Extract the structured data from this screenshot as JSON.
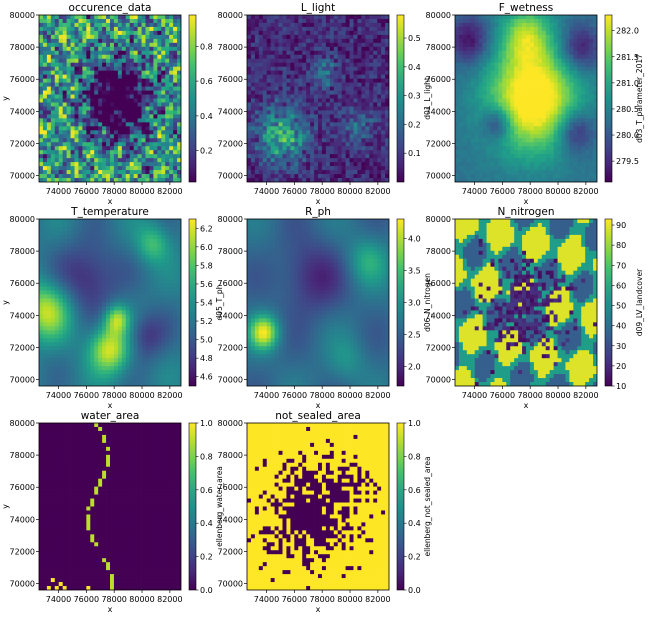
{
  "chart_data": [
    {
      "type": "heatmap",
      "title": "occurence_data",
      "xlabel": "x",
      "ylabel": "y",
      "cbar_label": "",
      "xticks": [
        "74000",
        "76000",
        "78000",
        "80000",
        "82000"
      ],
      "yticks": [
        "70000",
        "72000",
        "74000",
        "76000",
        "78000",
        "80000"
      ],
      "xlim": [
        72600,
        82800
      ],
      "ylim": [
        69600,
        80000
      ],
      "cbar_ticks": [
        "0.2",
        "0.4",
        "0.6",
        "0.8"
      ],
      "clim": [
        0.02,
        0.98
      ],
      "colormap": "viridis",
      "pattern": "fine-mottled urban mosaic, dark purple city centre with green/teal surroundings"
    },
    {
      "type": "heatmap",
      "title": "L_light",
      "xlabel": "x",
      "ylabel": "",
      "cbar_label": "d01_L_light",
      "xticks": [
        "74000",
        "76000",
        "78000",
        "80000",
        "82000"
      ],
      "yticks": [
        "70000",
        "72000",
        "74000",
        "76000",
        "78000",
        "80000"
      ],
      "xlim": [
        72600,
        82800
      ],
      "ylim": [
        69600,
        80000
      ],
      "cbar_ticks": [
        "0.1",
        "0.2",
        "0.3",
        "0.4",
        "0.5"
      ],
      "clim": [
        0.0,
        0.58
      ],
      "colormap": "viridis",
      "pattern": "mostly dark blue-purple with scattered green patches in the south-west"
    },
    {
      "type": "heatmap",
      "title": "F_wetness",
      "xlabel": "x",
      "ylabel": "",
      "cbar_label": "d03_T_parameter_2017",
      "xticks": [
        "74000",
        "76000",
        "78000",
        "80000",
        "82000"
      ],
      "yticks": [
        "70000",
        "72000",
        "74000",
        "76000",
        "78000",
        "80000"
      ],
      "xlim": [
        72600,
        82800
      ],
      "ylim": [
        69600,
        80000
      ],
      "cbar_ticks": [
        "279.5",
        "280.0",
        "280.5",
        "281.0",
        "281.5",
        "282.0"
      ],
      "clim": [
        279.1,
        282.3
      ],
      "colormap": "viridis",
      "pattern": "smooth gradient, bright yellow centre, purple outer patches"
    },
    {
      "type": "heatmap",
      "title": "T_temperature",
      "xlabel": "x",
      "ylabel": "y",
      "cbar_label": "d05_T_ph",
      "xticks": [
        "74000",
        "76000",
        "78000",
        "80000",
        "82000"
      ],
      "yticks": [
        "70000",
        "72000",
        "74000",
        "76000",
        "78000",
        "80000"
      ],
      "xlim": [
        72600,
        82800
      ],
      "ylim": [
        69600,
        80000
      ],
      "cbar_ticks": [
        "4.6",
        "4.8",
        "5.0",
        "5.2",
        "5.4",
        "5.6",
        "5.8",
        "6.0",
        "6.2"
      ],
      "clim": [
        4.5,
        6.3
      ],
      "colormap": "viridis",
      "pattern": "smooth blobs, yellow patches west and centre-south"
    },
    {
      "type": "heatmap",
      "title": "R_ph",
      "xlabel": "x",
      "ylabel": "",
      "cbar_label": "d06_N_nitrogen",
      "xticks": [
        "74000",
        "76000",
        "78000",
        "80000",
        "82000"
      ],
      "yticks": [
        "70000",
        "72000",
        "74000",
        "76000",
        "78000",
        "80000"
      ],
      "xlim": [
        72600,
        82800
      ],
      "ylim": [
        69600,
        80000
      ],
      "cbar_ticks": [
        "2.0",
        "2.5",
        "3.0",
        "3.5",
        "4.0"
      ],
      "clim": [
        1.7,
        4.3
      ],
      "colormap": "viridis",
      "pattern": "smooth blobs, mostly blue-purple with a yellow spot west"
    },
    {
      "type": "heatmap",
      "title": "N_nitrogen",
      "xlabel": "x",
      "ylabel": "",
      "cbar_label": "d09_LV_landcover",
      "xticks": [
        "74000",
        "76000",
        "78000",
        "80000",
        "82000"
      ],
      "yticks": [
        "70000",
        "72000",
        "74000",
        "76000",
        "78000",
        "80000"
      ],
      "xlim": [
        72600,
        82800
      ],
      "ylim": [
        69600,
        80000
      ],
      "cbar_ticks": [
        "10",
        "20",
        "30",
        "40",
        "50",
        "60",
        "70",
        "80",
        "90"
      ],
      "clim": [
        10,
        93
      ],
      "colormap": "viridis",
      "pattern": "categorical land cover, yellow and teal fields, purple urban core"
    },
    {
      "type": "heatmap",
      "title": "water_area",
      "xlabel": "x",
      "ylabel": "y",
      "cbar_label": "ellenberg_water_area",
      "xticks": [
        "74000",
        "76000",
        "78000",
        "80000",
        "82000"
      ],
      "yticks": [
        "70000",
        "72000",
        "74000",
        "76000",
        "78000",
        "80000"
      ],
      "xlim": [
        72600,
        82800
      ],
      "ylim": [
        69600,
        80000
      ],
      "cbar_ticks": [
        "0.0",
        "0.2",
        "0.4",
        "0.6",
        "0.8",
        "1.0"
      ],
      "clim": [
        0.0,
        1.0
      ],
      "colormap": "viridis",
      "pattern": "almost all dark purple with a thin yellow river line"
    },
    {
      "type": "heatmap",
      "title": "not_sealed_area",
      "xlabel": "x",
      "ylabel": "",
      "cbar_label": "ellenberg_not_sealed_area",
      "xticks": [
        "74000",
        "76000",
        "78000",
        "80000",
        "82000"
      ],
      "yticks": [
        "70000",
        "72000",
        "74000",
        "76000",
        "78000",
        "80000"
      ],
      "xlim": [
        72600,
        82800
      ],
      "ylim": [
        69600,
        80000
      ],
      "cbar_ticks": [
        "0.0",
        "0.2",
        "0.4",
        "0.6",
        "0.8",
        "1.0"
      ],
      "clim": [
        0.0,
        1.0
      ],
      "colormap": "viridis",
      "pattern": "mostly yellow with dark purple urban/sealed areas in the centre"
    }
  ]
}
